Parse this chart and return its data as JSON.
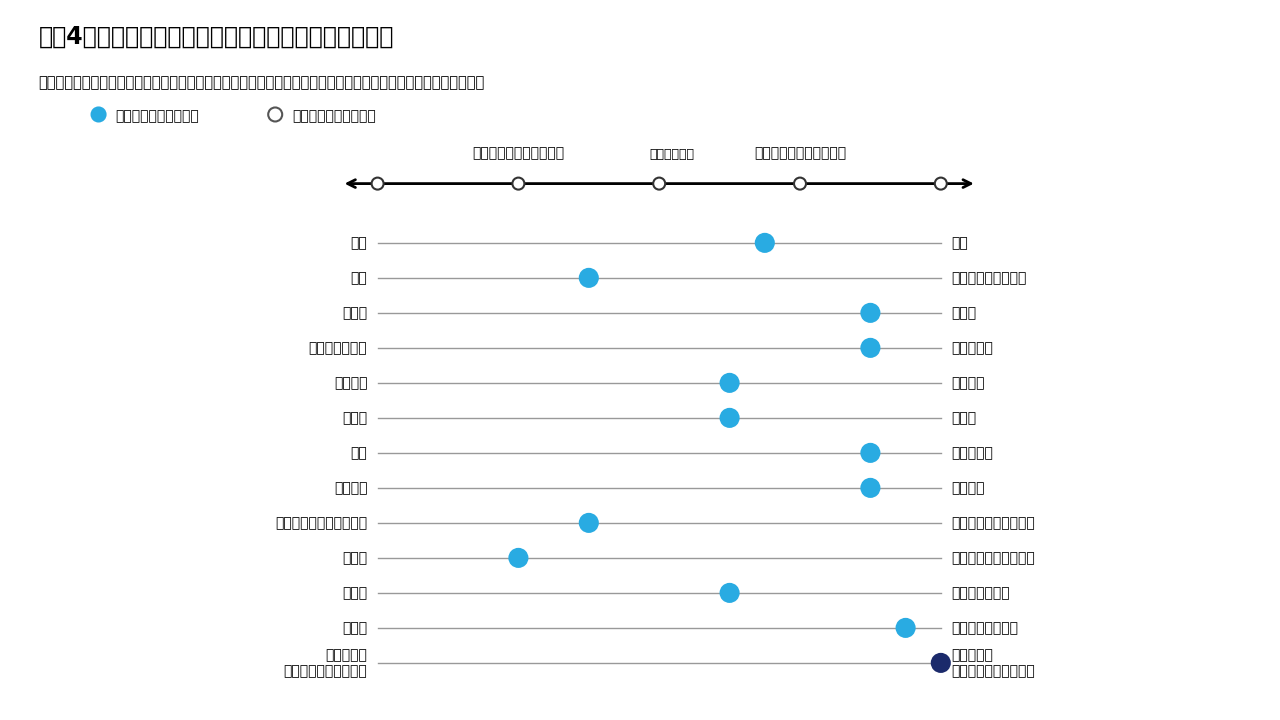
{
  "title": "図表4：戦術的資産配分のポジショニング（相対比較）",
  "subtitle": "新興国市場、クレジット、シクリカルを通じ、ポートフォリオのリスクをベンチマークに対してオーバーウェイト",
  "legend_current": "現在のポジショニング",
  "legend_previous": "前回のポジショニング",
  "axis_left_label": "オーバーウェイトが最大",
  "axis_center_label": "ニュートラル",
  "axis_right_label": "オーバーウェイトが最大",
  "x_min": -4,
  "x_max": 4,
  "axis_ticks": [
    -4,
    -2,
    0,
    2,
    4
  ],
  "rows": [
    {
      "left": "債券",
      "right": "株式",
      "current": 1.5,
      "previous": null
    },
    {
      "left": "米国",
      "right": "先進国（除く米国）",
      "current": -1.0,
      "previous": null
    },
    {
      "left": "先進国",
      "right": "新興国",
      "current": 3.0,
      "previous": null
    },
    {
      "left": "ディフェンシブ",
      "right": "シクリカル",
      "current": 3.0,
      "previous": null
    },
    {
      "left": "グロース",
      "right": "バリュー",
      "current": 1.0,
      "previous": null
    },
    {
      "left": "大型株",
      "right": "小型株",
      "current": 1.0,
      "previous": null
    },
    {
      "left": "国債",
      "right": "クレジット",
      "current": 3.0,
      "previous": null
    },
    {
      "left": "高格付け",
      "right": "低格付け",
      "current": 3.0,
      "previous": null
    },
    {
      "left": "ショートデュレーション",
      "right": "ロングデュレーション",
      "current": -1.0,
      "previous": null
    },
    {
      "left": "米国債",
      "right": "先進国債（除く米国）",
      "current": -2.0,
      "previous": null
    },
    {
      "left": "一般債",
      "right": "インフレ連動債",
      "current": 1.0,
      "previous": null
    },
    {
      "left": "米ドル",
      "right": "米ドル以外の通貨",
      "current": 3.5,
      "previous": null
    },
    {
      "left": "平均以下の\nポートフォリオリスク",
      "right": "平均以上の\nポートフォリオリスク",
      "current": 4.0,
      "previous": null,
      "bold": true,
      "dark_dot": true
    }
  ],
  "current_dot_color": "#29ABE2",
  "dark_dot_color": "#1B2A6B",
  "line_color": "#999999",
  "axis_line_color": "#000000",
  "background_color": "#ffffff",
  "title_color": "#000000",
  "subtitle_color": "#000000"
}
